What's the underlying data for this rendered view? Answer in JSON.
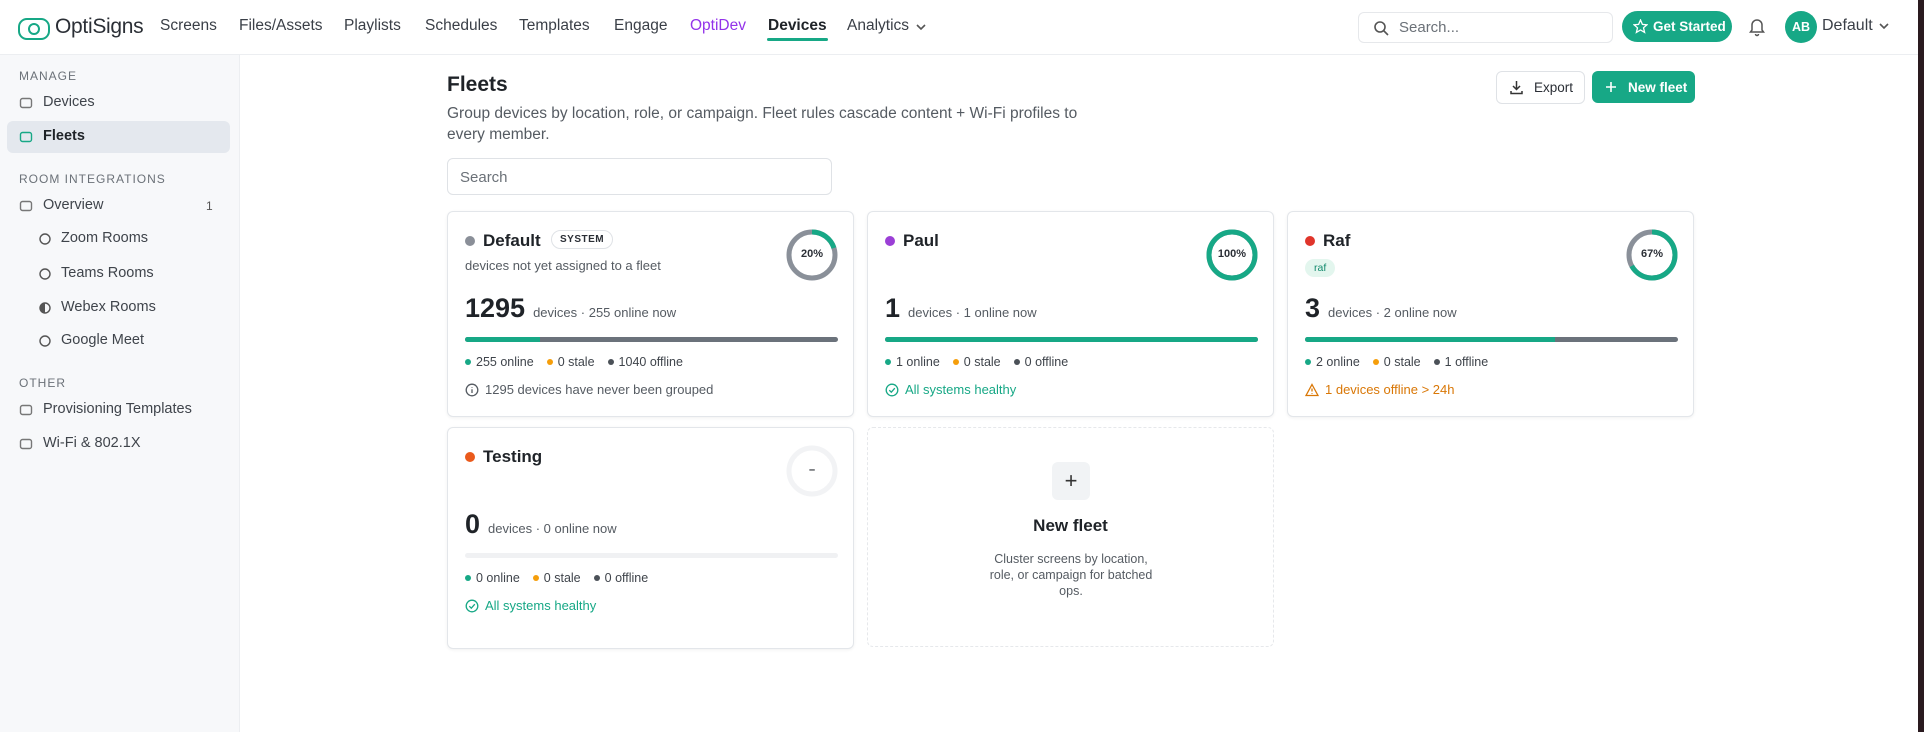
{
  "nav": {
    "logo": "OptiSigns",
    "items": [
      "Screens",
      "Files/Assets",
      "Playlists",
      "Schedules",
      "Templates",
      "Engage",
      "OptiDev",
      "Devices",
      "Analytics"
    ],
    "search": "Search...",
    "get_started": "Get Started",
    "avatar": "AB",
    "account": "Default"
  },
  "sidebar": {
    "sections": [
      {
        "label": "MANAGE",
        "items": [
          {
            "text": "Devices"
          },
          {
            "text": "Fleets"
          }
        ]
      },
      {
        "label": "ROOM INTEGRATIONS",
        "items": [
          {
            "text": "Overview",
            "count": "1"
          },
          {
            "text": "Zoom Rooms"
          },
          {
            "text": "Teams Rooms"
          },
          {
            "text": "Webex Rooms"
          },
          {
            "text": "Google Meet"
          }
        ]
      },
      {
        "label": "OTHER",
        "items": [
          {
            "text": "Provisioning Templates"
          },
          {
            "text": "Wi-Fi & 802.1X"
          }
        ]
      }
    ]
  },
  "page": {
    "title": "Fleets",
    "subtitle": "Group devices by location, role, or campaign. Fleet rules cascade content + Wi-Fi profiles to every member.",
    "export": "Export",
    "new_fleet": "New fleet",
    "search": "Search"
  },
  "fleets": [
    {
      "name": "Default",
      "color": "#8a8f98",
      "tag": "SYSTEM",
      "description": "devices not yet assigned to a fleet",
      "ring": {
        "value": 20,
        "label": "20%"
      },
      "count": "1295",
      "count_text": "devices · 255 online now",
      "stats": [
        "255 online",
        "0 stale",
        "1040 offline"
      ],
      "note": "1295 devices have never been grouped"
    },
    {
      "name": "Paul",
      "color": "#9b3fd6",
      "ring": {
        "value": 100,
        "label": "100%"
      },
      "count": "1",
      "count_text": "devices · 1 online now",
      "stats": [
        "1 online",
        "0 stale",
        "0 offline"
      ],
      "note": "All systems healthy"
    },
    {
      "name": "Raf",
      "color": "#e0352b",
      "pill": "raf",
      "ring": {
        "value": 67,
        "label": "67%"
      },
      "count": "3",
      "count_text": "devices · 2 online now",
      "stats": [
        "2 online",
        "0 stale",
        "1 offline"
      ],
      "note": "1 devices offline > 24h"
    },
    {
      "name": "Testing",
      "color": "#ea5a1c",
      "ring": {
        "label": "–"
      },
      "count": "0",
      "count_text": "devices · 0 online now",
      "stats": [
        "0 online",
        "0 stale",
        "0 offline"
      ],
      "note": "All systems healthy"
    }
  ],
  "new_card": {
    "icon": "+",
    "title": "New fleet",
    "text": "Cluster screens by location, role, or campaign for batched ops."
  }
}
